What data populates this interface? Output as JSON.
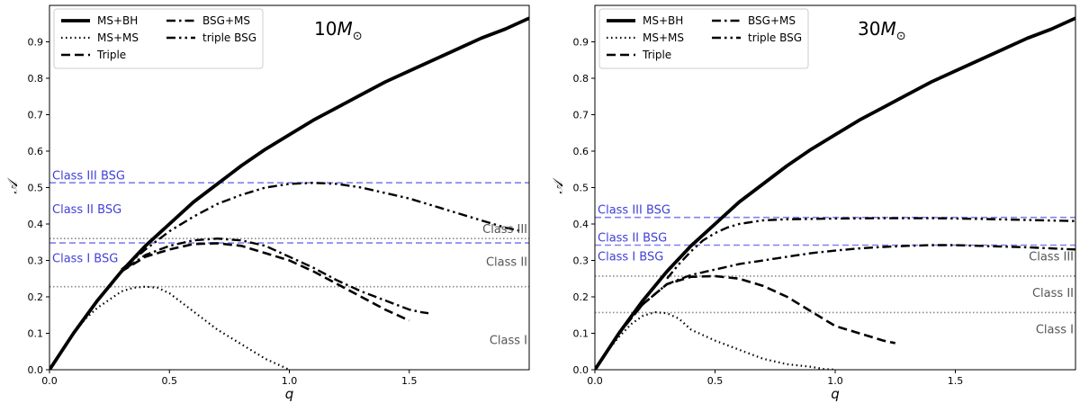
{
  "chart_data": [
    {
      "type": "line",
      "title": "10",
      "mass_label": "10",
      "mass_unit": "M",
      "mass_sub": "⊙",
      "xlabel": "q",
      "ylabel": "𝒜",
      "xlim": [
        0,
        2.0
      ],
      "ylim": [
        0,
        1.0
      ],
      "xticks": [
        0.0,
        0.5,
        1.0,
        1.5
      ],
      "xtick_labels": [
        "0.0",
        "0.5",
        "1.0",
        "1.5"
      ],
      "yticks": [
        0.0,
        0.1,
        0.2,
        0.3,
        0.4,
        0.5,
        0.6,
        0.7,
        0.8,
        0.9
      ],
      "ytick_labels": [
        "0.0",
        "0.1",
        "0.2",
        "0.3",
        "0.4",
        "0.5",
        "0.6",
        "0.7",
        "0.8",
        "0.9"
      ],
      "legend_position": "top-left",
      "series": [
        {
          "name": "MS+BH",
          "style": "solid",
          "x": [
            0,
            0.02,
            0.05,
            0.1,
            0.15,
            0.2,
            0.3,
            0.4,
            0.5,
            0.6,
            0.7,
            0.8,
            0.9,
            1.0,
            1.1,
            1.2,
            1.3,
            1.4,
            1.5,
            1.6,
            1.7,
            1.8,
            1.9,
            2.0
          ],
          "y": [
            0,
            0.02,
            0.05,
            0.1,
            0.145,
            0.19,
            0.27,
            0.34,
            0.4,
            0.46,
            0.51,
            0.56,
            0.605,
            0.645,
            0.685,
            0.72,
            0.755,
            0.79,
            0.82,
            0.85,
            0.88,
            0.91,
            0.935,
            0.965
          ]
        },
        {
          "name": "MS+MS",
          "style": "dotted",
          "x": [
            0,
            0.05,
            0.1,
            0.15,
            0.2,
            0.3,
            0.35,
            0.4,
            0.45,
            0.5,
            0.6,
            0.7,
            0.8,
            0.9,
            1.0
          ],
          "y": [
            0,
            0.05,
            0.1,
            0.14,
            0.17,
            0.215,
            0.225,
            0.228,
            0.225,
            0.21,
            0.16,
            0.11,
            0.07,
            0.03,
            0.0
          ]
        },
        {
          "name": "Triple",
          "style": "dashed",
          "x": [
            0,
            0.1,
            0.2,
            0.3,
            0.4,
            0.5,
            0.6,
            0.7,
            0.8,
            0.9,
            1.0,
            1.1,
            1.2,
            1.3,
            1.4,
            1.5
          ],
          "y": [
            0,
            0.1,
            0.19,
            0.27,
            0.31,
            0.33,
            0.345,
            0.347,
            0.34,
            0.32,
            0.3,
            0.27,
            0.235,
            0.2,
            0.165,
            0.135
          ]
        },
        {
          "name": "BSG+MS",
          "style": "dashdot",
          "x": [
            0,
            0.1,
            0.2,
            0.3,
            0.4,
            0.5,
            0.6,
            0.7,
            0.8,
            0.9,
            1.0,
            1.1,
            1.2,
            1.3,
            1.4,
            1.5,
            1.55,
            1.58
          ],
          "y": [
            0,
            0.1,
            0.19,
            0.27,
            0.315,
            0.34,
            0.355,
            0.36,
            0.355,
            0.34,
            0.31,
            0.28,
            0.245,
            0.215,
            0.19,
            0.165,
            0.158,
            0.155
          ]
        },
        {
          "name": "triple BSG",
          "style": "dashdotdot",
          "x": [
            0.3,
            0.4,
            0.5,
            0.6,
            0.7,
            0.8,
            0.9,
            1.0,
            1.1,
            1.2,
            1.3,
            1.4,
            1.5,
            1.6,
            1.7,
            1.8,
            1.9,
            1.97
          ],
          "y": [
            0.275,
            0.33,
            0.38,
            0.42,
            0.455,
            0.48,
            0.5,
            0.51,
            0.513,
            0.51,
            0.5,
            0.485,
            0.47,
            0.45,
            0.43,
            0.41,
            0.39,
            0.38
          ]
        }
      ],
      "hlines": [
        {
          "y": 0.513,
          "style": "blue-dashed",
          "label": "Class III BSG",
          "label_y": 0.522
        },
        {
          "y": 0.348,
          "style": "blue-dashed",
          "label": "",
          "label_y": 0
        },
        {
          "y": 0.36,
          "style": "gray-dotted",
          "label": "",
          "label_y": 0
        },
        {
          "y": 0.228,
          "style": "gray-dotted",
          "label": "",
          "label_y": 0
        }
      ],
      "left_labels": [
        {
          "text": "Class II BSG",
          "y": 0.43
        },
        {
          "text": "Class I BSG",
          "y": 0.295
        }
      ],
      "right_labels": [
        {
          "text": "Class III",
          "y": 0.375
        },
        {
          "text": "Class II",
          "y": 0.285
        },
        {
          "text": "Class I",
          "y": 0.07
        }
      ]
    },
    {
      "type": "line",
      "title": "30",
      "mass_label": "30",
      "mass_unit": "M",
      "mass_sub": "⊙",
      "xlabel": "q",
      "ylabel": "𝒜",
      "xlim": [
        0,
        2.0
      ],
      "ylim": [
        0,
        1.0
      ],
      "xticks": [
        0.0,
        0.5,
        1.0,
        1.5
      ],
      "xtick_labels": [
        "0.0",
        "0.5",
        "1.0",
        "1.5"
      ],
      "yticks": [
        0.0,
        0.1,
        0.2,
        0.3,
        0.4,
        0.5,
        0.6,
        0.7,
        0.8,
        0.9
      ],
      "ytick_labels": [
        "0.0",
        "0.1",
        "0.2",
        "0.3",
        "0.4",
        "0.5",
        "0.6",
        "0.7",
        "0.8",
        "0.9"
      ],
      "legend_position": "top-left",
      "series": [
        {
          "name": "MS+BH",
          "style": "solid",
          "x": [
            0,
            0.02,
            0.05,
            0.1,
            0.15,
            0.2,
            0.3,
            0.4,
            0.5,
            0.6,
            0.7,
            0.8,
            0.9,
            1.0,
            1.1,
            1.2,
            1.3,
            1.4,
            1.5,
            1.6,
            1.7,
            1.8,
            1.9,
            2.0
          ],
          "y": [
            0,
            0.02,
            0.05,
            0.1,
            0.145,
            0.19,
            0.27,
            0.34,
            0.4,
            0.46,
            0.51,
            0.56,
            0.605,
            0.645,
            0.685,
            0.72,
            0.755,
            0.79,
            0.82,
            0.85,
            0.88,
            0.91,
            0.935,
            0.965
          ]
        },
        {
          "name": "MS+MS",
          "style": "dotted",
          "x": [
            0,
            0.05,
            0.1,
            0.15,
            0.2,
            0.25,
            0.3,
            0.35,
            0.4,
            0.5,
            0.6,
            0.7,
            0.8,
            0.9,
            0.95,
            1.0
          ],
          "y": [
            0,
            0.05,
            0.09,
            0.125,
            0.148,
            0.158,
            0.155,
            0.14,
            0.11,
            0.08,
            0.055,
            0.03,
            0.015,
            0.008,
            0.002,
            0.0
          ]
        },
        {
          "name": "Triple",
          "style": "dashed",
          "x": [
            0,
            0.1,
            0.2,
            0.3,
            0.4,
            0.5,
            0.6,
            0.7,
            0.8,
            0.9,
            1.0,
            1.1,
            1.2,
            1.25
          ],
          "y": [
            0,
            0.1,
            0.18,
            0.235,
            0.255,
            0.257,
            0.25,
            0.23,
            0.2,
            0.16,
            0.12,
            0.1,
            0.08,
            0.073
          ]
        },
        {
          "name": "BSG+MS",
          "style": "dashdot",
          "x": [
            0,
            0.1,
            0.2,
            0.3,
            0.4,
            0.5,
            0.6,
            0.7,
            0.8,
            0.9,
            1.0,
            1.1,
            1.2,
            1.3,
            1.4,
            1.5,
            1.6,
            1.7,
            1.8,
            1.9,
            2.0
          ],
          "y": [
            0,
            0.1,
            0.18,
            0.235,
            0.26,
            0.275,
            0.29,
            0.3,
            0.31,
            0.32,
            0.327,
            0.333,
            0.337,
            0.34,
            0.342,
            0.342,
            0.34,
            0.338,
            0.336,
            0.333,
            0.33
          ]
        },
        {
          "name": "triple BSG",
          "style": "dashdotdot",
          "x": [
            0.3,
            0.35,
            0.4,
            0.45,
            0.5,
            0.55,
            0.6,
            0.7,
            0.8,
            0.9,
            1.0,
            1.2,
            1.4,
            1.6,
            1.8,
            2.0
          ],
          "y": [
            0.25,
            0.29,
            0.325,
            0.355,
            0.375,
            0.39,
            0.4,
            0.41,
            0.413,
            0.414,
            0.415,
            0.416,
            0.416,
            0.414,
            0.411,
            0.408
          ]
        }
      ],
      "hlines": [
        {
          "y": 0.418,
          "style": "blue-dashed",
          "label": "Class III BSG",
          "label_y": 0.428
        },
        {
          "y": 0.342,
          "style": "blue-dashed",
          "label": "Class II BSG",
          "label_y": 0.352
        },
        {
          "y": 0.257,
          "style": "gray-dotted",
          "label": "",
          "label_y": 0
        },
        {
          "y": 0.157,
          "style": "gray-dotted",
          "label": "",
          "label_y": 0
        }
      ],
      "left_labels": [
        {
          "text": "Class I BSG",
          "y": 0.3
        }
      ],
      "right_labels": [
        {
          "text": "Class III",
          "y": 0.3
        },
        {
          "text": "Class II",
          "y": 0.2
        },
        {
          "text": "Class I",
          "y": 0.1
        }
      ]
    }
  ]
}
